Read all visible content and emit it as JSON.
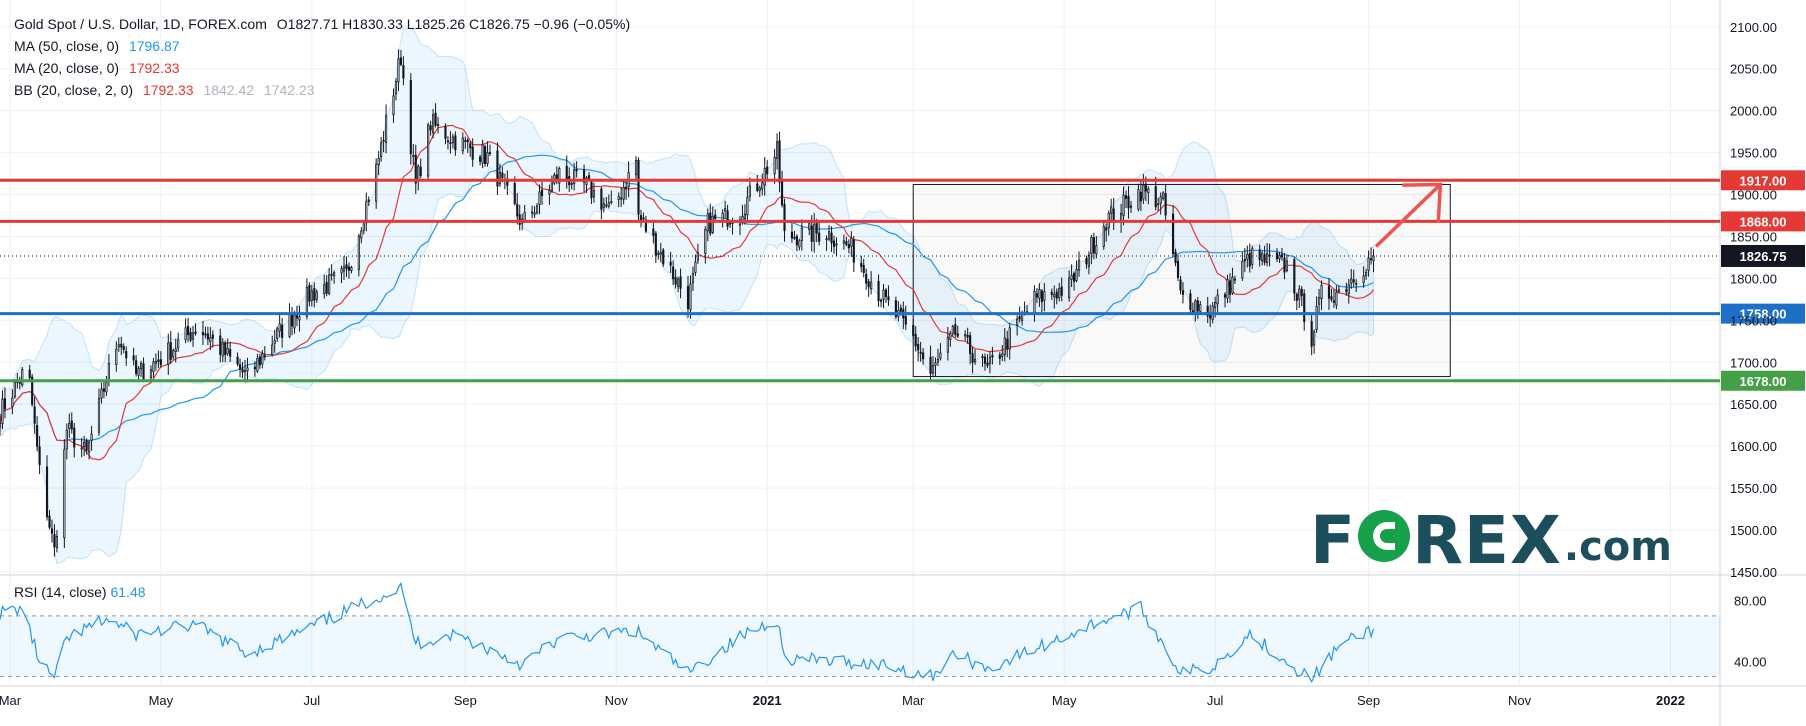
{
  "legend": {
    "symbol": "Gold Spot / U.S. Dollar, 1D, FOREX.com",
    "ohlc": "O1827.71  H1830.33  L1825.26  C1826.75  −0.96 (−0.05%)",
    "ma50_label": "MA (50, close, 0)",
    "ma50_value": "1796.87",
    "ma20_label": "MA (20, close, 0)",
    "ma20_value": "1792.33",
    "bb_label": "BB (20, close, 2, 0)",
    "bb_basis": "1792.33",
    "bb_upper": "1842.42",
    "bb_lower": "1742.23",
    "rsi_label": "RSI (14, close)",
    "rsi_value": "61.48"
  },
  "logo": {
    "main_left": "F",
    "main_right": "REX",
    "suffix": ".com"
  },
  "colors": {
    "up": "#ffffff",
    "down": "#131722",
    "ma50": "#2196f3",
    "ma20": "#e53935",
    "bb_fill": "#2196f3",
    "red_level": "#e53935",
    "blue_level": "#1e6fc7",
    "green_level": "#43a047",
    "rsi": "#2196f3",
    "grid": "#eef0f4",
    "text": "#131722"
  },
  "chart_data": [
    {
      "type": "candlestick",
      "title": "Gold Spot / U.S. Dollar, 1D, FOREX.com",
      "price_axis": {
        "ylim": [
          1450,
          2120
        ],
        "ticks": [
          "2100.00",
          "2050.00",
          "2000.00",
          "1950.00",
          "1900.00",
          "1850.00",
          "1800.00",
          "1750.00",
          "1700.00",
          "1650.00",
          "1600.00",
          "1550.00",
          "1500.00",
          "1450.00"
        ]
      },
      "time_axis": {
        "xlim": [
          "2020-02-26",
          "2022-01-21"
        ],
        "ticks": [
          {
            "label": "Mar",
            "date": "2020-03-01"
          },
          {
            "label": "May",
            "date": "2020-05-01"
          },
          {
            "label": "Jul",
            "date": "2020-07-01"
          },
          {
            "label": "Sep",
            "date": "2020-09-01"
          },
          {
            "label": "Nov",
            "date": "2020-11-01"
          },
          {
            "label": "2021",
            "date": "2021-01-01",
            "bold": true
          },
          {
            "label": "Mar",
            "date": "2021-03-01"
          },
          {
            "label": "May",
            "date": "2021-05-01"
          },
          {
            "label": "Jul",
            "date": "2021-07-01"
          },
          {
            "label": "Sep",
            "date": "2021-09-01"
          },
          {
            "label": "Nov",
            "date": "2021-11-01"
          },
          {
            "label": "2022",
            "date": "2022-01-01",
            "bold": true
          }
        ]
      },
      "close_path": [
        [
          "2020-02-26",
          1640
        ],
        [
          "2020-03-06",
          1685
        ],
        [
          "2020-03-09",
          1675
        ],
        [
          "2020-03-13",
          1570
        ],
        [
          "2020-03-19",
          1475
        ],
        [
          "2020-03-24",
          1620
        ],
        [
          "2020-04-01",
          1590
        ],
        [
          "2020-04-09",
          1680
        ],
        [
          "2020-04-14",
          1730
        ],
        [
          "2020-04-21",
          1685
        ],
        [
          "2020-05-01",
          1705
        ],
        [
          "2020-05-15",
          1740
        ],
        [
          "2020-05-19",
          1735
        ],
        [
          "2020-06-05",
          1682
        ],
        [
          "2020-06-15",
          1725
        ],
        [
          "2020-06-30",
          1780
        ],
        [
          "2020-07-15",
          1805
        ],
        [
          "2020-07-27",
          1930
        ],
        [
          "2020-08-06",
          2065
        ],
        [
          "2020-08-12",
          1910
        ],
        [
          "2020-08-18",
          1985
        ],
        [
          "2020-08-28",
          1965
        ],
        [
          "2020-09-10",
          1945
        ],
        [
          "2020-09-24",
          1865
        ],
        [
          "2020-10-09",
          1925
        ],
        [
          "2020-10-20",
          1910
        ],
        [
          "2020-10-30",
          1880
        ],
        [
          "2020-11-09",
          1940
        ],
        [
          "2020-11-10",
          1875
        ],
        [
          "2020-11-24",
          1805
        ],
        [
          "2020-11-30",
          1775
        ],
        [
          "2020-12-08",
          1865
        ],
        [
          "2020-12-21",
          1880
        ],
        [
          "2021-01-05",
          1950
        ],
        [
          "2021-01-08",
          1850
        ],
        [
          "2021-01-25",
          1855
        ],
        [
          "2021-02-04",
          1835
        ],
        [
          "2021-02-17",
          1775
        ],
        [
          "2021-03-01",
          1730
        ],
        [
          "2021-03-08",
          1685
        ],
        [
          "2021-03-18",
          1735
        ],
        [
          "2021-03-31",
          1690
        ],
        [
          "2021-04-19",
          1775
        ],
        [
          "2021-05-03",
          1790
        ],
        [
          "2021-05-18",
          1870
        ],
        [
          "2021-06-01",
          1905
        ],
        [
          "2021-06-10",
          1890
        ],
        [
          "2021-06-17",
          1780
        ],
        [
          "2021-06-29",
          1760
        ],
        [
          "2021-07-15",
          1825
        ],
        [
          "2021-07-30",
          1815
        ],
        [
          "2021-08-06",
          1760
        ],
        [
          "2021-08-09",
          1730
        ],
        [
          "2021-08-13",
          1780
        ],
        [
          "2021-08-20",
          1785
        ],
        [
          "2021-09-03",
          1826.75
        ]
      ],
      "ma_series": [
        {
          "name": "MA (50, close, 0)",
          "last": 1796.87
        },
        {
          "name": "MA (20, close, 0)",
          "last": 1792.33
        }
      ],
      "bollinger": {
        "name": "BB (20, close, 2, 0)",
        "basis": 1792.33,
        "upper": 1842.42,
        "lower": 1742.23
      },
      "last_price": {
        "value": 1826.75,
        "label": "1826.75"
      },
      "levels": [
        {
          "value": 1917,
          "label": "1917.00",
          "color": "red"
        },
        {
          "value": 1868,
          "label": "1868.00",
          "color": "red"
        },
        {
          "value": 1758,
          "label": "1758.00",
          "color": "blue"
        },
        {
          "value": 1678,
          "label": "1678.00",
          "color": "green"
        }
      ],
      "range_box": {
        "from": "2021-03-01",
        "to": "2021-10-04",
        "top": 1912,
        "bottom": 1683
      },
      "arrow": {
        "from": [
          "2021-09-04",
          1838
        ],
        "to": [
          "2021-09-30",
          1912
        ]
      }
    },
    {
      "type": "line",
      "title": "RSI (14, close)",
      "ylim": [
        25,
        95
      ],
      "ticks": [
        "80.00",
        "40.00"
      ],
      "bands": [
        70,
        30
      ],
      "last": 61.48,
      "points": [
        [
          "2020-02-26",
          72
        ],
        [
          "2020-03-06",
          75
        ],
        [
          "2020-03-13",
          40
        ],
        [
          "2020-03-19",
          28
        ],
        [
          "2020-03-24",
          55
        ],
        [
          "2020-04-09",
          68
        ],
        [
          "2020-04-21",
          58
        ],
        [
          "2020-05-15",
          64
        ],
        [
          "2020-06-05",
          45
        ],
        [
          "2020-06-30",
          62
        ],
        [
          "2020-07-27",
          82
        ],
        [
          "2020-08-06",
          88
        ],
        [
          "2020-08-12",
          52
        ],
        [
          "2020-08-28",
          58
        ],
        [
          "2020-09-24",
          38
        ],
        [
          "2020-10-09",
          55
        ],
        [
          "2020-11-09",
          60
        ],
        [
          "2020-11-30",
          32
        ],
        [
          "2020-12-21",
          56
        ],
        [
          "2021-01-05",
          68
        ],
        [
          "2021-01-08",
          42
        ],
        [
          "2021-02-17",
          38
        ],
        [
          "2021-03-08",
          30
        ],
        [
          "2021-03-18",
          45
        ],
        [
          "2021-03-31",
          35
        ],
        [
          "2021-05-18",
          68
        ],
        [
          "2021-06-01",
          75
        ],
        [
          "2021-06-17",
          33
        ],
        [
          "2021-06-29",
          35
        ],
        [
          "2021-07-15",
          58
        ],
        [
          "2021-08-09",
          28
        ],
        [
          "2021-08-20",
          50
        ],
        [
          "2021-09-03",
          61.48
        ]
      ]
    }
  ]
}
